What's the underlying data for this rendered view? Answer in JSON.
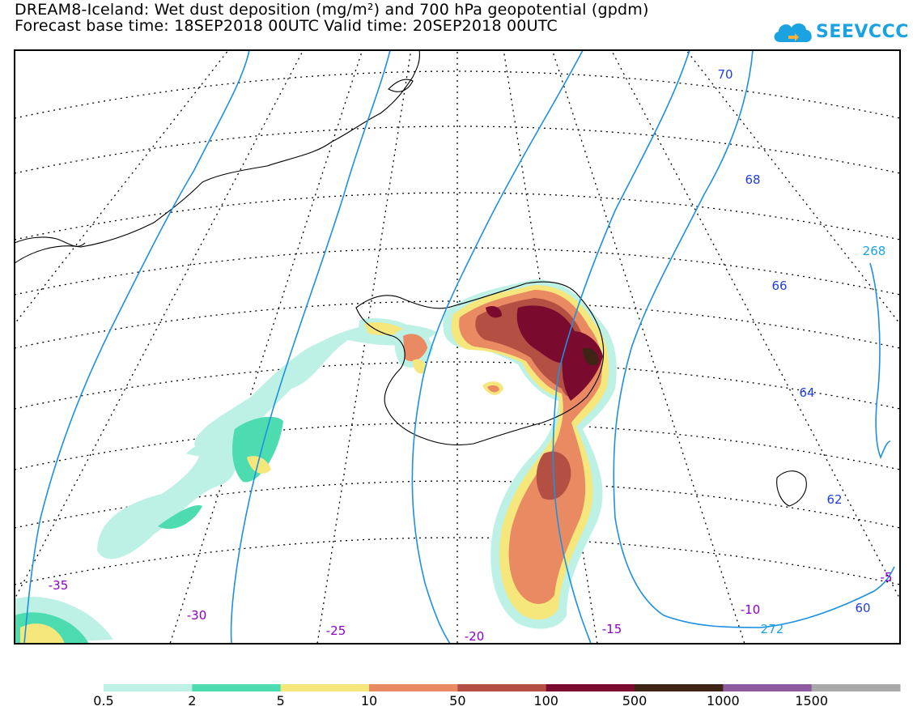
{
  "title": {
    "line1": "DREAM8-Iceland: Wet dust deposition (mg/m²) and 700 hPa geopotential (gpdm)",
    "line2": "Forecast base time: 18SEP2018 00UTC     Valid time: 20SEP2018 00UTC"
  },
  "logo": {
    "text": "SEEVCCC",
    "icon": "cloud-icon",
    "color": "#1aa3e0"
  },
  "map": {
    "contours": [
      {
        "label": "70",
        "color": "#1f3fe0"
      },
      {
        "label": "68",
        "color": "#1f3fe0"
      },
      {
        "label": "66",
        "color": "#1f3fe0"
      },
      {
        "label": "64",
        "color": "#1f3fe0"
      },
      {
        "label": "62",
        "color": "#1f3fe0"
      },
      {
        "label": "60",
        "color": "#1f3fe0"
      },
      {
        "label": "268",
        "color": "#1aa3e0"
      },
      {
        "label": "272",
        "color": "#1aa3e0"
      }
    ],
    "longitudes": [
      "-35",
      "-30",
      "-25",
      "-20",
      "-15",
      "-10",
      "-5"
    ],
    "longitude_color": "#8a00c8",
    "isoline_color": "#1e90e0"
  },
  "colorbar": {
    "labels": [
      "0.5",
      "2",
      "5",
      "10",
      "50",
      "100",
      "500",
      "1000",
      "1500"
    ],
    "colors": [
      "#bdf1e6",
      "#4ddcb0",
      "#f5e77b",
      "#e98a62",
      "#b35043",
      "#7b0a2f",
      "#3e2414",
      "#8e5aa0",
      "#a9a9a9"
    ]
  }
}
